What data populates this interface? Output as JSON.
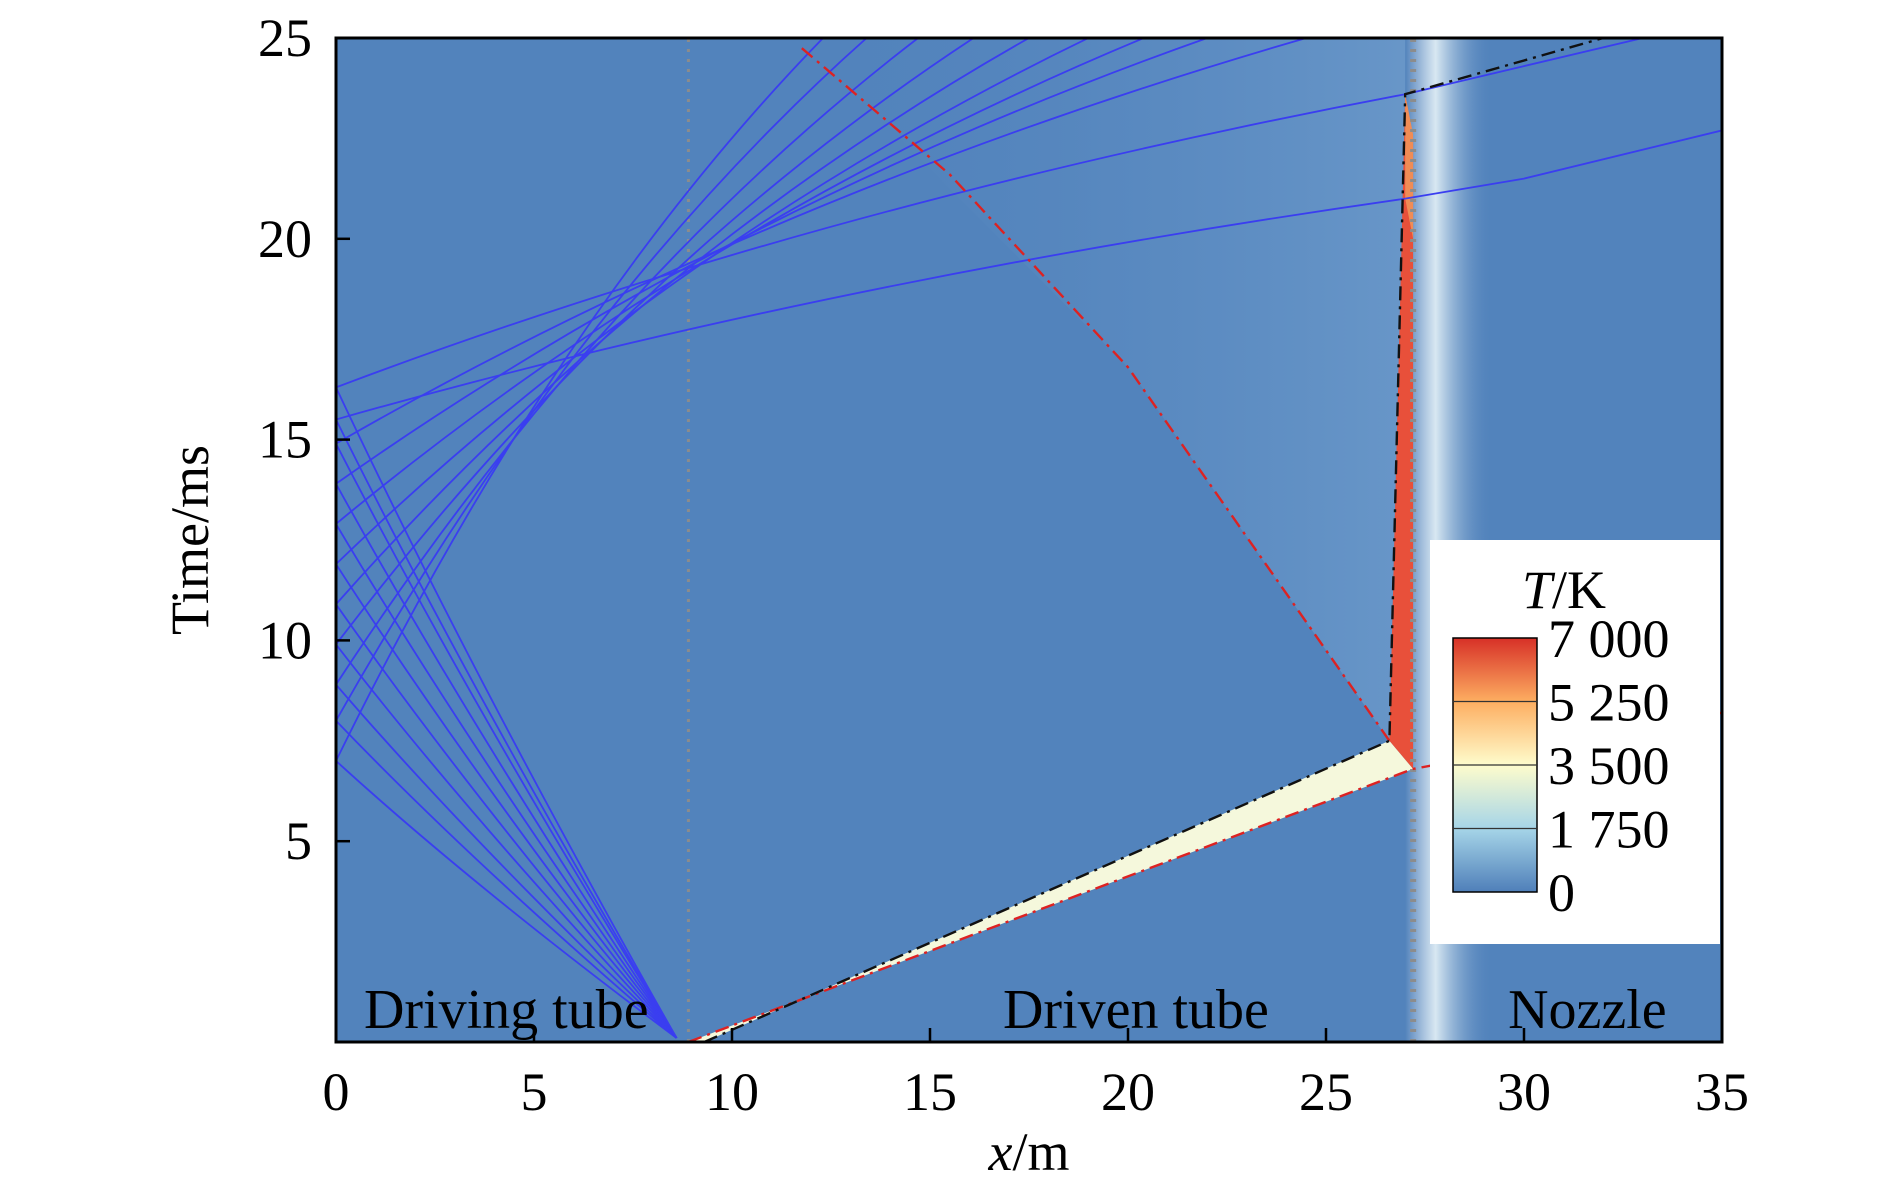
{
  "chart_data": {
    "type": "heatmap",
    "xlabel_var": "x",
    "xlabel_unit": "/m",
    "ylabel": "Time/ms",
    "xlim": [
      0,
      35
    ],
    "ylim": [
      0,
      25
    ],
    "xticks": [
      "0",
      "5",
      "10",
      "15",
      "20",
      "25",
      "30",
      "35"
    ],
    "yticks": [
      "5",
      "10",
      "15",
      "20",
      "25"
    ],
    "xtick_values": [
      0,
      5,
      10,
      15,
      20,
      25,
      30,
      35
    ],
    "ytick_values": [
      5,
      10,
      15,
      20,
      25
    ],
    "regions": [
      {
        "label": "Driving tube",
        "x": 4.3
      },
      {
        "label": "Driven tube",
        "x": 20.2
      },
      {
        "label": "Nozzle",
        "x": 31.6
      }
    ],
    "boundaries_x": [
      8.9,
      27.2
    ],
    "colorbar": {
      "title_var": "T",
      "title_unit": "/K",
      "ticks": [
        "7 000",
        "5 250",
        "3 500",
        "1 750",
        "0"
      ],
      "values": [
        7000,
        5250,
        3500,
        1750,
        0
      ],
      "colors": [
        "#d73027",
        "#fdae61",
        "#fefccc",
        "#a6d5e8",
        "#4f7fb9"
      ]
    },
    "background_color": "#5283bc",
    "hot_colors": {
      "cream": "#f5f8dc",
      "red": "#e8503a",
      "orange": "#f08c55"
    },
    "shock_red_lines": [
      {
        "name": "primary shock",
        "points": [
          [
            8.9,
            0
          ],
          [
            27.2,
            6.8
          ],
          [
            35,
            8.2
          ]
        ]
      },
      {
        "name": "reflected shock",
        "points": [
          [
            26.6,
            7.5
          ],
          [
            20,
            16.8
          ],
          [
            15.5,
            21.6
          ],
          [
            11.7,
            24.8
          ]
        ]
      }
    ],
    "contact_black_lines": [
      {
        "name": "contact surface",
        "points": [
          [
            9.3,
            0
          ],
          [
            26.6,
            7.5
          ],
          [
            27.0,
            23.6
          ],
          [
            32,
            25
          ]
        ]
      }
    ],
    "characteristics_blue": {
      "fan_origin": [
        8.6,
        0.1
      ],
      "fan_wall_t": [
        7.0,
        8.0,
        8.9,
        9.9,
        10.9,
        11.9,
        12.9,
        13.9,
        14.9,
        15.5,
        16.3
      ],
      "reflected_endpoints": [
        {
          "t0": 7.0,
          "x_end": 12.3
        },
        {
          "t0": 8.0,
          "x_end": 13.4
        },
        {
          "t0": 8.9,
          "x_end": 14.7
        },
        {
          "t0": 9.9,
          "x_end": 16.1
        },
        {
          "t0": 10.9,
          "x_end": 17.5
        },
        {
          "t0": 11.9,
          "x_end": 19.0
        },
        {
          "t0": 12.9,
          "x_end": 20.4
        },
        {
          "t0": 13.9,
          "x_end": 22.0
        },
        {
          "t0": 14.9,
          "x_end": 24.5
        },
        {
          "t0": 15.5,
          "x_end": 27.0,
          "t_end": 21.0
        },
        {
          "t0": 16.3,
          "x_end": 27.0,
          "t_end": 23.6
        }
      ],
      "transmitted": [
        {
          "points": [
            [
              27.0,
              21.0
            ],
            [
              30,
              21.5
            ],
            [
              35,
              22.7
            ]
          ]
        },
        {
          "points": [
            [
              27.0,
              23.6
            ],
            [
              30,
              24.3
            ],
            [
              33,
              25
            ]
          ]
        }
      ]
    }
  }
}
